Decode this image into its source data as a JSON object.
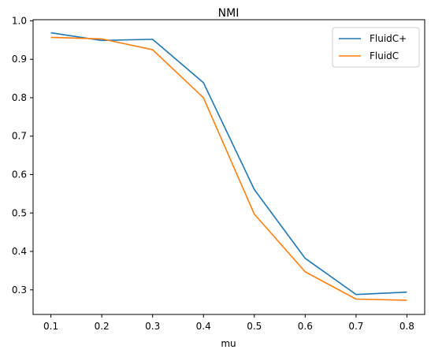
{
  "chart_data": {
    "type": "line",
    "title": "NMI",
    "xlabel": "mu",
    "ylabel": "",
    "x": [
      0.1,
      0.2,
      0.3,
      0.4,
      0.5,
      0.6,
      0.7,
      0.8
    ],
    "xticks": [
      "0.1",
      "0.2",
      "0.3",
      "0.4",
      "0.5",
      "0.6",
      "0.7",
      "0.8"
    ],
    "yticks": [
      "0.3",
      "0.4",
      "0.5",
      "0.6",
      "0.7",
      "0.8",
      "0.9",
      "1.0"
    ],
    "xlim": [
      0.065,
      0.835
    ],
    "ylim": [
      0.236,
      1.003
    ],
    "grid": false,
    "legend_position": "top-right",
    "series": [
      {
        "name": "FluidC+",
        "color": "#1f77b4",
        "values": [
          0.969,
          0.949,
          0.952,
          0.839,
          0.561,
          0.382,
          0.288,
          0.294
        ]
      },
      {
        "name": "FluidC",
        "color": "#ff7f0e",
        "values": [
          0.957,
          0.953,
          0.925,
          0.8,
          0.497,
          0.347,
          0.276,
          0.273
        ]
      }
    ]
  }
}
